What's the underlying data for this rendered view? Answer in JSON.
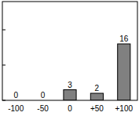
{
  "chart_data": {
    "type": "bar",
    "categories": [
      "-100",
      "-50",
      "0",
      "+50",
      "+100"
    ],
    "values": [
      0,
      0,
      3,
      2,
      16
    ],
    "color": "#808080",
    "ylim": [
      0,
      28
    ],
    "yticks": [
      0,
      10,
      20
    ],
    "data_labels": true,
    "tick_labels": "x",
    "grid": false
  }
}
